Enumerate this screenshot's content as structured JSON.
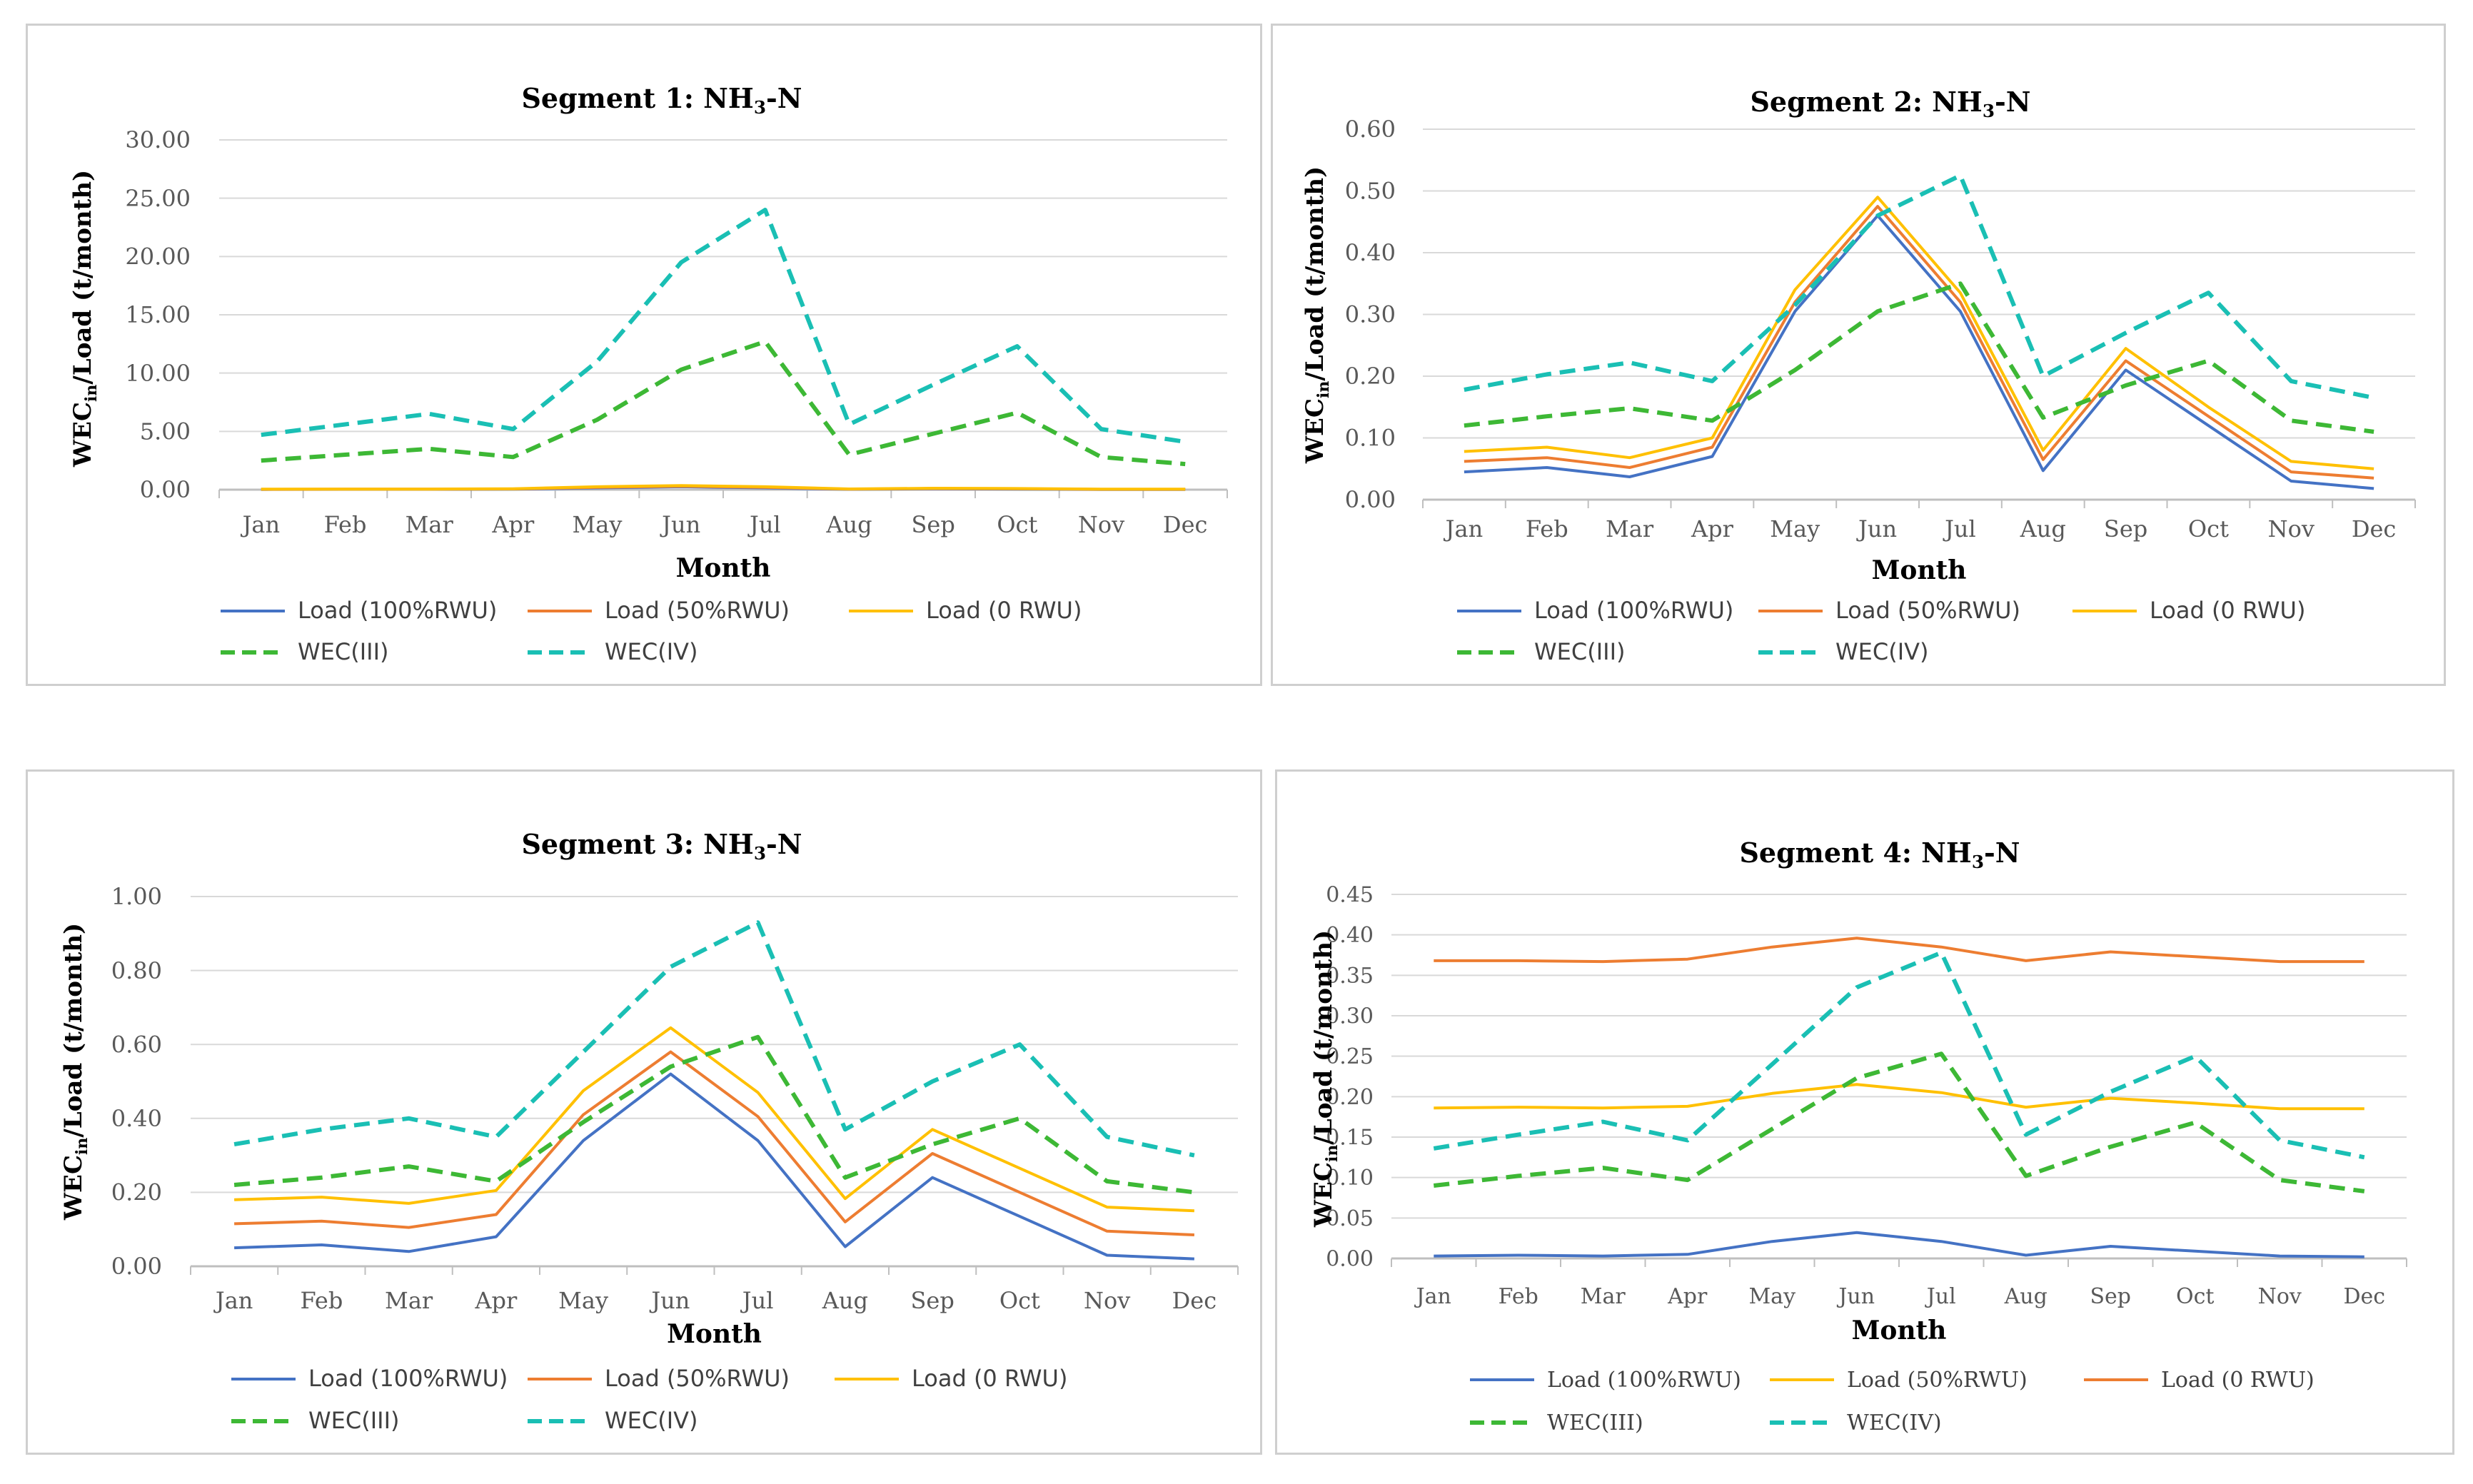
{
  "colors": {
    "load100": "#4472C4",
    "load50": "#ED7D31",
    "load0": "#FFC000",
    "wec3": "#3DB835",
    "wec4": "#1ABFB4",
    "grid": "#d9d9d9",
    "axis_text": "#595959"
  },
  "chart_data": [
    {
      "type": "line",
      "title": "Segment 1: NH",
      "title_sub": "3",
      "title_suffix": "-N",
      "xlabel": "Month",
      "ylabel": "WEC",
      "ylabel_sub": "in",
      "ylabel_suffix": "/Load (t/month)",
      "categories": [
        "Jan",
        "Feb",
        "Mar",
        "Apr",
        "May",
        "Jun",
        "Jul",
        "Aug",
        "Sep",
        "Oct",
        "Nov",
        "Dec"
      ],
      "ylim": [
        0,
        30
      ],
      "yticks": [
        "0.00",
        "5.00",
        "10.00",
        "15.00",
        "20.00",
        "25.00",
        "30.00"
      ],
      "yticks_values": [
        0,
        5,
        10,
        15,
        20,
        25,
        30
      ],
      "series": [
        {
          "name": "Load (100%RWU)",
          "color_key": "load100",
          "dashed": false,
          "values": [
            0.02,
            0.03,
            0.03,
            0.04,
            0.15,
            0.25,
            0.15,
            0.03,
            0.08,
            0.05,
            0.02,
            0.02
          ]
        },
        {
          "name": "Load (50%RWU)",
          "color_key": "load50",
          "dashed": false,
          "values": [
            0.03,
            0.04,
            0.04,
            0.06,
            0.2,
            0.3,
            0.2,
            0.05,
            0.1,
            0.08,
            0.03,
            0.03
          ]
        },
        {
          "name": "Load (0 RWU)",
          "color_key": "load0",
          "dashed": false,
          "values": [
            0.04,
            0.05,
            0.05,
            0.08,
            0.25,
            0.35,
            0.25,
            0.06,
            0.12,
            0.1,
            0.04,
            0.04
          ]
        },
        {
          "name": "WEC(III)",
          "color_key": "wec3",
          "dashed": true,
          "values": [
            2.5,
            3.0,
            3.5,
            2.8,
            6.0,
            10.3,
            12.7,
            3.0,
            4.8,
            6.6,
            2.8,
            2.2
          ]
        },
        {
          "name": "WEC(IV)",
          "color_key": "wec4",
          "dashed": true,
          "values": [
            4.7,
            5.6,
            6.5,
            5.2,
            11.0,
            19.5,
            24.0,
            5.6,
            9.0,
            12.3,
            5.2,
            4.1
          ]
        }
      ],
      "legend_serif": false
    },
    {
      "type": "line",
      "title": "Segment 2: NH",
      "title_sub": "3",
      "title_suffix": "-N",
      "xlabel": "Month",
      "ylabel": "WEC",
      "ylabel_sub": "in",
      "ylabel_suffix": "/Load (t/month)",
      "categories": [
        "Jan",
        "Feb",
        "Mar",
        "Apr",
        "May",
        "Jun",
        "Jul",
        "Aug",
        "Sep",
        "Oct",
        "Nov",
        "Dec"
      ],
      "ylim": [
        0,
        0.6
      ],
      "yticks": [
        "0.00",
        "0.10",
        "0.20",
        "0.30",
        "0.40",
        "0.50",
        "0.60"
      ],
      "yticks_values": [
        0,
        0.1,
        0.2,
        0.3,
        0.4,
        0.5,
        0.6
      ],
      "series": [
        {
          "name": "Load (100%RWU)",
          "color_key": "load100",
          "dashed": false,
          "values": [
            0.045,
            0.052,
            0.037,
            0.07,
            0.305,
            0.46,
            0.305,
            0.047,
            0.21,
            0.12,
            0.03,
            0.018
          ]
        },
        {
          "name": "Load (50%RWU)",
          "color_key": "load50",
          "dashed": false,
          "values": [
            0.062,
            0.068,
            0.052,
            0.085,
            0.32,
            0.475,
            0.32,
            0.065,
            0.225,
            0.135,
            0.045,
            0.035
          ]
        },
        {
          "name": "Load (0 RWU)",
          "color_key": "load0",
          "dashed": false,
          "values": [
            0.078,
            0.085,
            0.068,
            0.1,
            0.34,
            0.49,
            0.335,
            0.08,
            0.245,
            0.15,
            0.062,
            0.05
          ]
        },
        {
          "name": "WEC(III)",
          "color_key": "wec3",
          "dashed": true,
          "values": [
            0.12,
            0.135,
            0.148,
            0.128,
            0.21,
            0.305,
            0.35,
            0.133,
            0.185,
            0.225,
            0.128,
            0.11
          ]
        },
        {
          "name": "WEC(IV)",
          "color_key": "wec4",
          "dashed": true,
          "values": [
            0.178,
            0.203,
            0.222,
            0.192,
            0.315,
            0.46,
            0.525,
            0.2,
            0.27,
            0.335,
            0.192,
            0.165
          ]
        }
      ],
      "legend_serif": false
    },
    {
      "type": "line",
      "title": "Segment 3: NH",
      "title_sub": "3",
      "title_suffix": "-N",
      "xlabel": "Month",
      "ylabel": "WEC",
      "ylabel_sub": "in",
      "ylabel_suffix": "/Load (t/month)",
      "categories": [
        "Jan",
        "Feb",
        "Mar",
        "Apr",
        "May",
        "Jun",
        "Jul",
        "Aug",
        "Sep",
        "Oct",
        "Nov",
        "Dec"
      ],
      "ylim": [
        0,
        1.0
      ],
      "yticks": [
        "0.00",
        "0.20",
        "0.40",
        "0.60",
        "0.80",
        "1.00"
      ],
      "yticks_values": [
        0,
        0.2,
        0.4,
        0.6,
        0.8,
        1.0
      ],
      "series": [
        {
          "name": "Load (100%RWU)",
          "color_key": "load100",
          "dashed": false,
          "values": [
            0.05,
            0.058,
            0.04,
            0.08,
            0.34,
            0.52,
            0.34,
            0.053,
            0.24,
            0.135,
            0.03,
            0.02
          ]
        },
        {
          "name": "Load (50%RWU)",
          "color_key": "load50",
          "dashed": false,
          "values": [
            0.115,
            0.122,
            0.105,
            0.14,
            0.41,
            0.58,
            0.405,
            0.12,
            0.305,
            0.2,
            0.095,
            0.085
          ]
        },
        {
          "name": "Load (0 RWU)",
          "color_key": "load0",
          "dashed": false,
          "values": [
            0.18,
            0.187,
            0.17,
            0.205,
            0.475,
            0.645,
            0.47,
            0.183,
            0.37,
            0.265,
            0.16,
            0.15
          ]
        },
        {
          "name": "WEC(III)",
          "color_key": "wec3",
          "dashed": true,
          "values": [
            0.22,
            0.24,
            0.27,
            0.23,
            0.39,
            0.54,
            0.62,
            0.24,
            0.33,
            0.4,
            0.23,
            0.2
          ]
        },
        {
          "name": "WEC(IV)",
          "color_key": "wec4",
          "dashed": true,
          "values": [
            0.33,
            0.37,
            0.4,
            0.35,
            0.58,
            0.81,
            0.93,
            0.37,
            0.5,
            0.6,
            0.35,
            0.3
          ]
        }
      ],
      "legend_serif": false
    },
    {
      "type": "line",
      "title": "Segment 4: NH",
      "title_sub": "3",
      "title_suffix": "-N",
      "xlabel": "Month",
      "ylabel": "WEC",
      "ylabel_sub": "in",
      "ylabel_suffix": "/Load (t/month)",
      "categories": [
        "Jan",
        "Feb",
        "Mar",
        "Apr",
        "May",
        "Jun",
        "Jul",
        "Aug",
        "Sep",
        "Oct",
        "Nov",
        "Dec"
      ],
      "ylim": [
        0,
        0.45
      ],
      "yticks": [
        "0.00",
        "0.05",
        "0.10",
        "0.15",
        "0.20",
        "0.25",
        "0.30",
        "0.35",
        "0.40",
        "0.45"
      ],
      "yticks_values": [
        0,
        0.05,
        0.1,
        0.15,
        0.2,
        0.25,
        0.3,
        0.35,
        0.4,
        0.45
      ],
      "series": [
        {
          "name": "Load (100%RWU)",
          "color_key": "load100",
          "dashed": false,
          "values": [
            0.003,
            0.004,
            0.003,
            0.005,
            0.021,
            0.032,
            0.021,
            0.004,
            0.015,
            0.009,
            0.003,
            0.002
          ]
        },
        {
          "name": "Load (50%RWU)",
          "color_key": "load0",
          "dashed": false,
          "values": [
            0.186,
            0.187,
            0.186,
            0.188,
            0.204,
            0.215,
            0.205,
            0.187,
            0.198,
            0.192,
            0.185,
            0.185
          ]
        },
        {
          "name": "Load (0 RWU)",
          "color_key": "load50",
          "dashed": false,
          "values": [
            0.368,
            0.368,
            0.367,
            0.37,
            0.385,
            0.396,
            0.385,
            0.368,
            0.379,
            0.373,
            0.367,
            0.367
          ]
        },
        {
          "name": "WEC(III)",
          "color_key": "wec3",
          "dashed": true,
          "values": [
            0.09,
            0.102,
            0.112,
            0.097,
            0.16,
            0.223,
            0.253,
            0.102,
            0.138,
            0.168,
            0.097,
            0.083
          ]
        },
        {
          "name": "WEC(IV)",
          "color_key": "wec4",
          "dashed": true,
          "values": [
            0.136,
            0.153,
            0.169,
            0.146,
            0.24,
            0.335,
            0.378,
            0.153,
            0.206,
            0.25,
            0.146,
            0.125
          ]
        }
      ],
      "legend_serif": true
    }
  ]
}
